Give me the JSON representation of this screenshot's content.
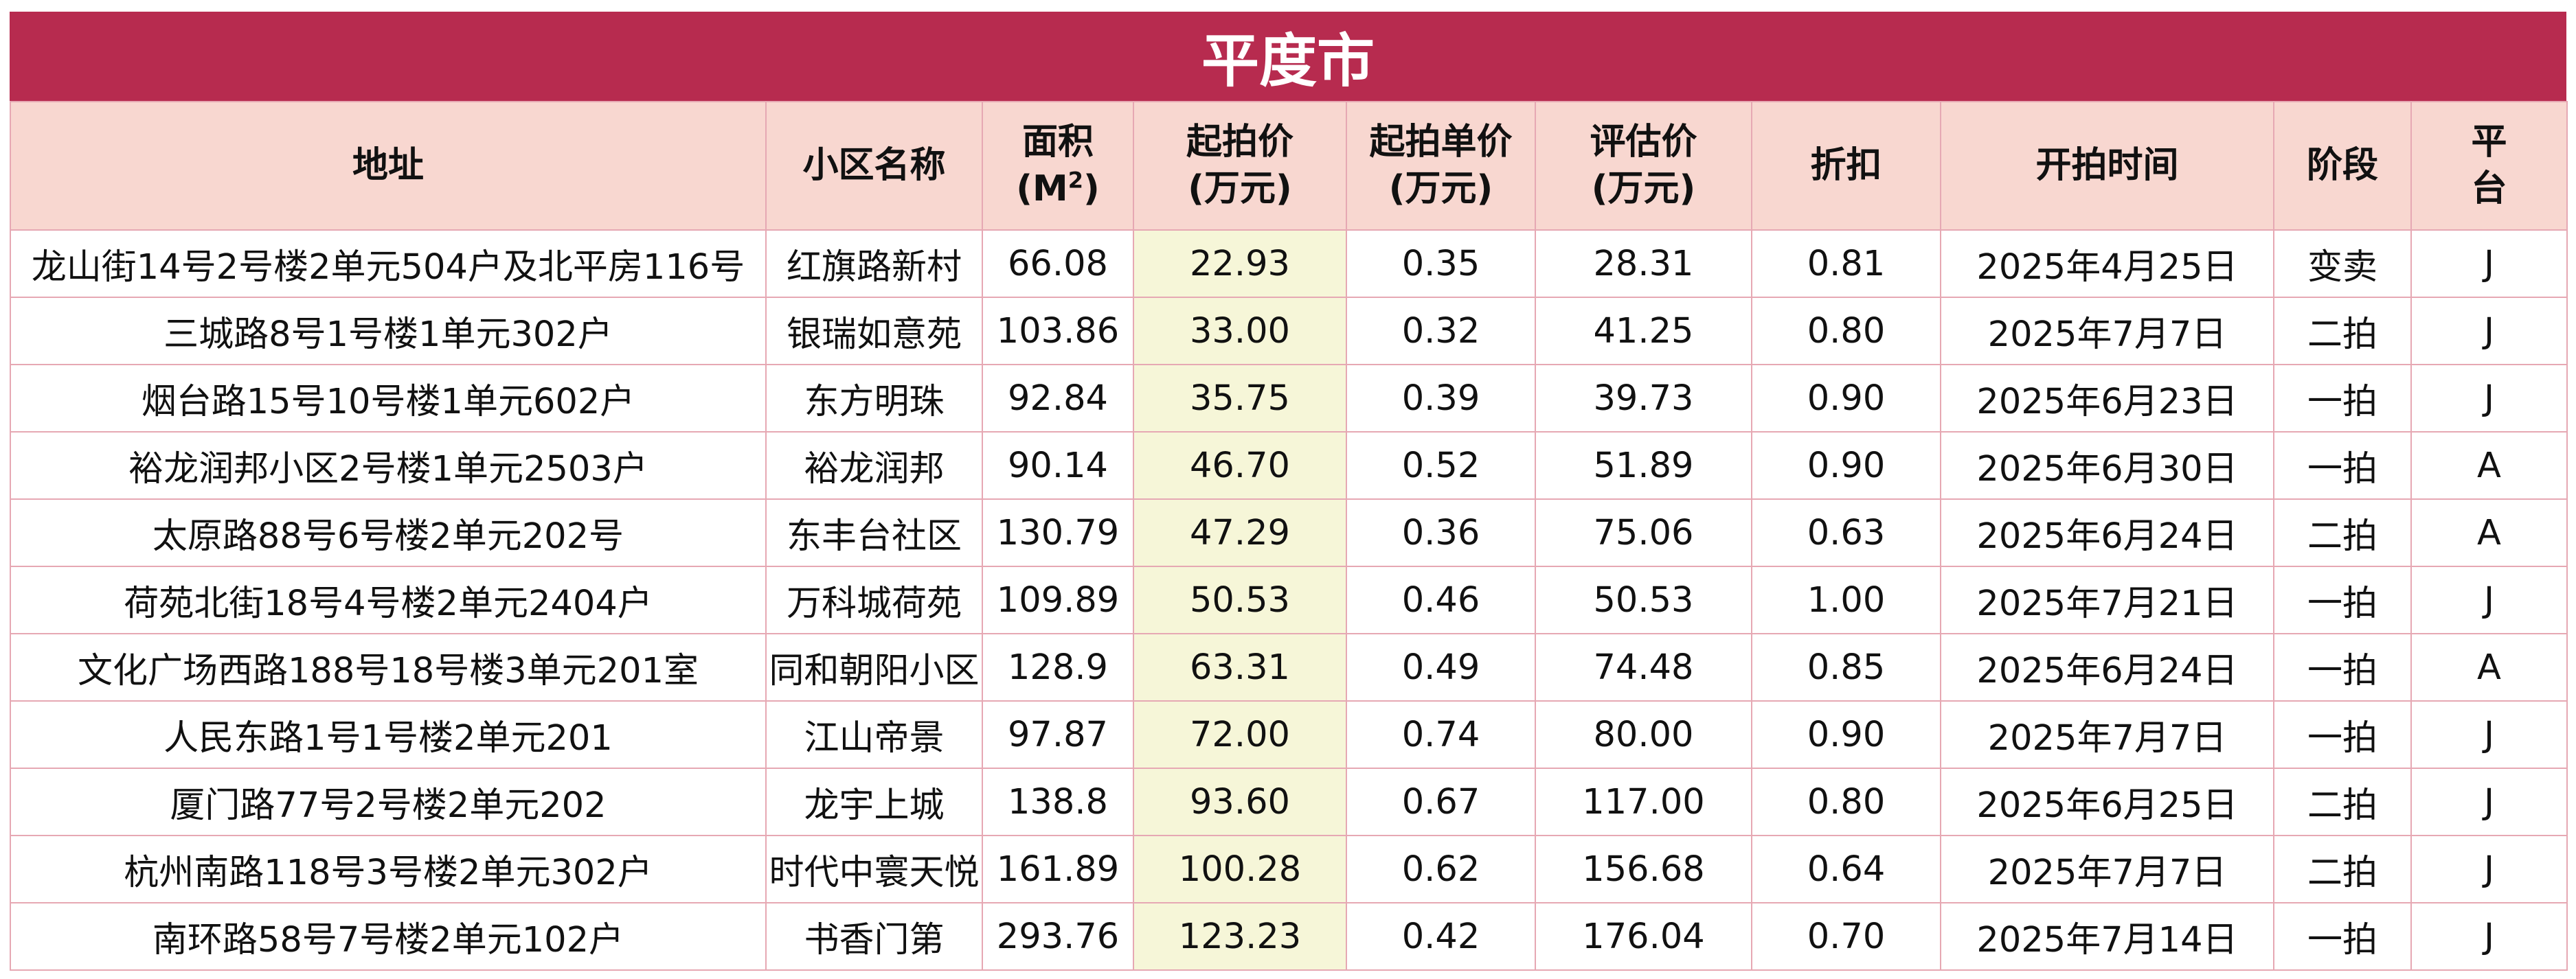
{
  "title": "平度市",
  "headers": {
    "address": "地址",
    "community": "小区名称",
    "area": "面积",
    "area_unit_open": "(M",
    "area_unit_sup": "2",
    "area_unit_close": ")",
    "start_price": "起拍价",
    "start_price_unit": "(万元)",
    "unit_price": "起拍单价",
    "unit_price_unit": "(万元)",
    "appraisal": "评估价",
    "appraisal_unit": "(万元)",
    "discount": "折扣",
    "auction_time": "开拍时间",
    "stage": "阶段",
    "platform_1": "平",
    "platform_2": "台"
  },
  "rows": [
    {
      "address": "龙山街14号2号楼2单元504户及北平房116号",
      "community": "红旗路新村",
      "area": "66.08",
      "start_price": "22.93",
      "unit_price": "0.35",
      "appraisal": "28.31",
      "discount": "0.81",
      "time": "2025年4月25日",
      "stage": "变卖",
      "platform": "J"
    },
    {
      "address": "三城路8号1号楼1单元302户",
      "community": "银瑞如意苑",
      "area": "103.86",
      "start_price": "33.00",
      "unit_price": "0.32",
      "appraisal": "41.25",
      "discount": "0.80",
      "time": "2025年7月7日",
      "stage": "二拍",
      "platform": "J"
    },
    {
      "address": "烟台路15号10号楼1单元602户",
      "community": "东方明珠",
      "area": "92.84",
      "start_price": "35.75",
      "unit_price": "0.39",
      "appraisal": "39.73",
      "discount": "0.90",
      "time": "2025年6月23日",
      "stage": "一拍",
      "platform": "J"
    },
    {
      "address": "裕龙润邦小区2号楼1单元2503户",
      "community": "裕龙润邦",
      "area": "90.14",
      "start_price": "46.70",
      "unit_price": "0.52",
      "appraisal": "51.89",
      "discount": "0.90",
      "time": "2025年6月30日",
      "stage": "一拍",
      "platform": "A"
    },
    {
      "address": "太原路88号6号楼2单元202号",
      "community": "东丰台社区",
      "area": "130.79",
      "start_price": "47.29",
      "unit_price": "0.36",
      "appraisal": "75.06",
      "discount": "0.63",
      "time": "2025年6月24日",
      "stage": "二拍",
      "platform": "A"
    },
    {
      "address": "荷苑北街18号4号楼2单元2404户",
      "community": "万科城荷苑",
      "area": "109.89",
      "start_price": "50.53",
      "unit_price": "0.46",
      "appraisal": "50.53",
      "discount": "1.00",
      "time": "2025年7月21日",
      "stage": "一拍",
      "platform": "J"
    },
    {
      "address": "文化广场西路188号18号楼3单元201室",
      "community": "同和朝阳小区",
      "area": "128.9",
      "start_price": "63.31",
      "unit_price": "0.49",
      "appraisal": "74.48",
      "discount": "0.85",
      "time": "2025年6月24日",
      "stage": "一拍",
      "platform": "A"
    },
    {
      "address": "人民东路1号1号楼2单元201",
      "community": "江山帝景",
      "area": "97.87",
      "start_price": "72.00",
      "unit_price": "0.74",
      "appraisal": "80.00",
      "discount": "0.90",
      "time": "2025年7月7日",
      "stage": "一拍",
      "platform": "J"
    },
    {
      "address": "厦门路77号2号楼2单元202",
      "community": "龙宇上城",
      "area": "138.8",
      "start_price": "93.60",
      "unit_price": "0.67",
      "appraisal": "117.00",
      "discount": "0.80",
      "time": "2025年6月25日",
      "stage": "二拍",
      "platform": "J"
    },
    {
      "address": "杭州南路118号3号楼2单元302户",
      "community": "时代中寰天悦",
      "area": "161.89",
      "start_price": "100.28",
      "unit_price": "0.62",
      "appraisal": "156.68",
      "discount": "0.64",
      "time": "2025年7月7日",
      "stage": "二拍",
      "platform": "J"
    },
    {
      "address": "南环路58号7号楼2单元102户",
      "community": "书香门第",
      "area": "293.76",
      "start_price": "123.23",
      "unit_price": "0.42",
      "appraisal": "176.04",
      "discount": "0.70",
      "time": "2025年7月14日",
      "stage": "一拍",
      "platform": "J"
    }
  ],
  "colors": {
    "title_bg": "#b72b4f",
    "header_bg": "#f8d7d0",
    "highlight_col_bg": "#f6f6d8",
    "grid_line": "#e6a8b3"
  }
}
